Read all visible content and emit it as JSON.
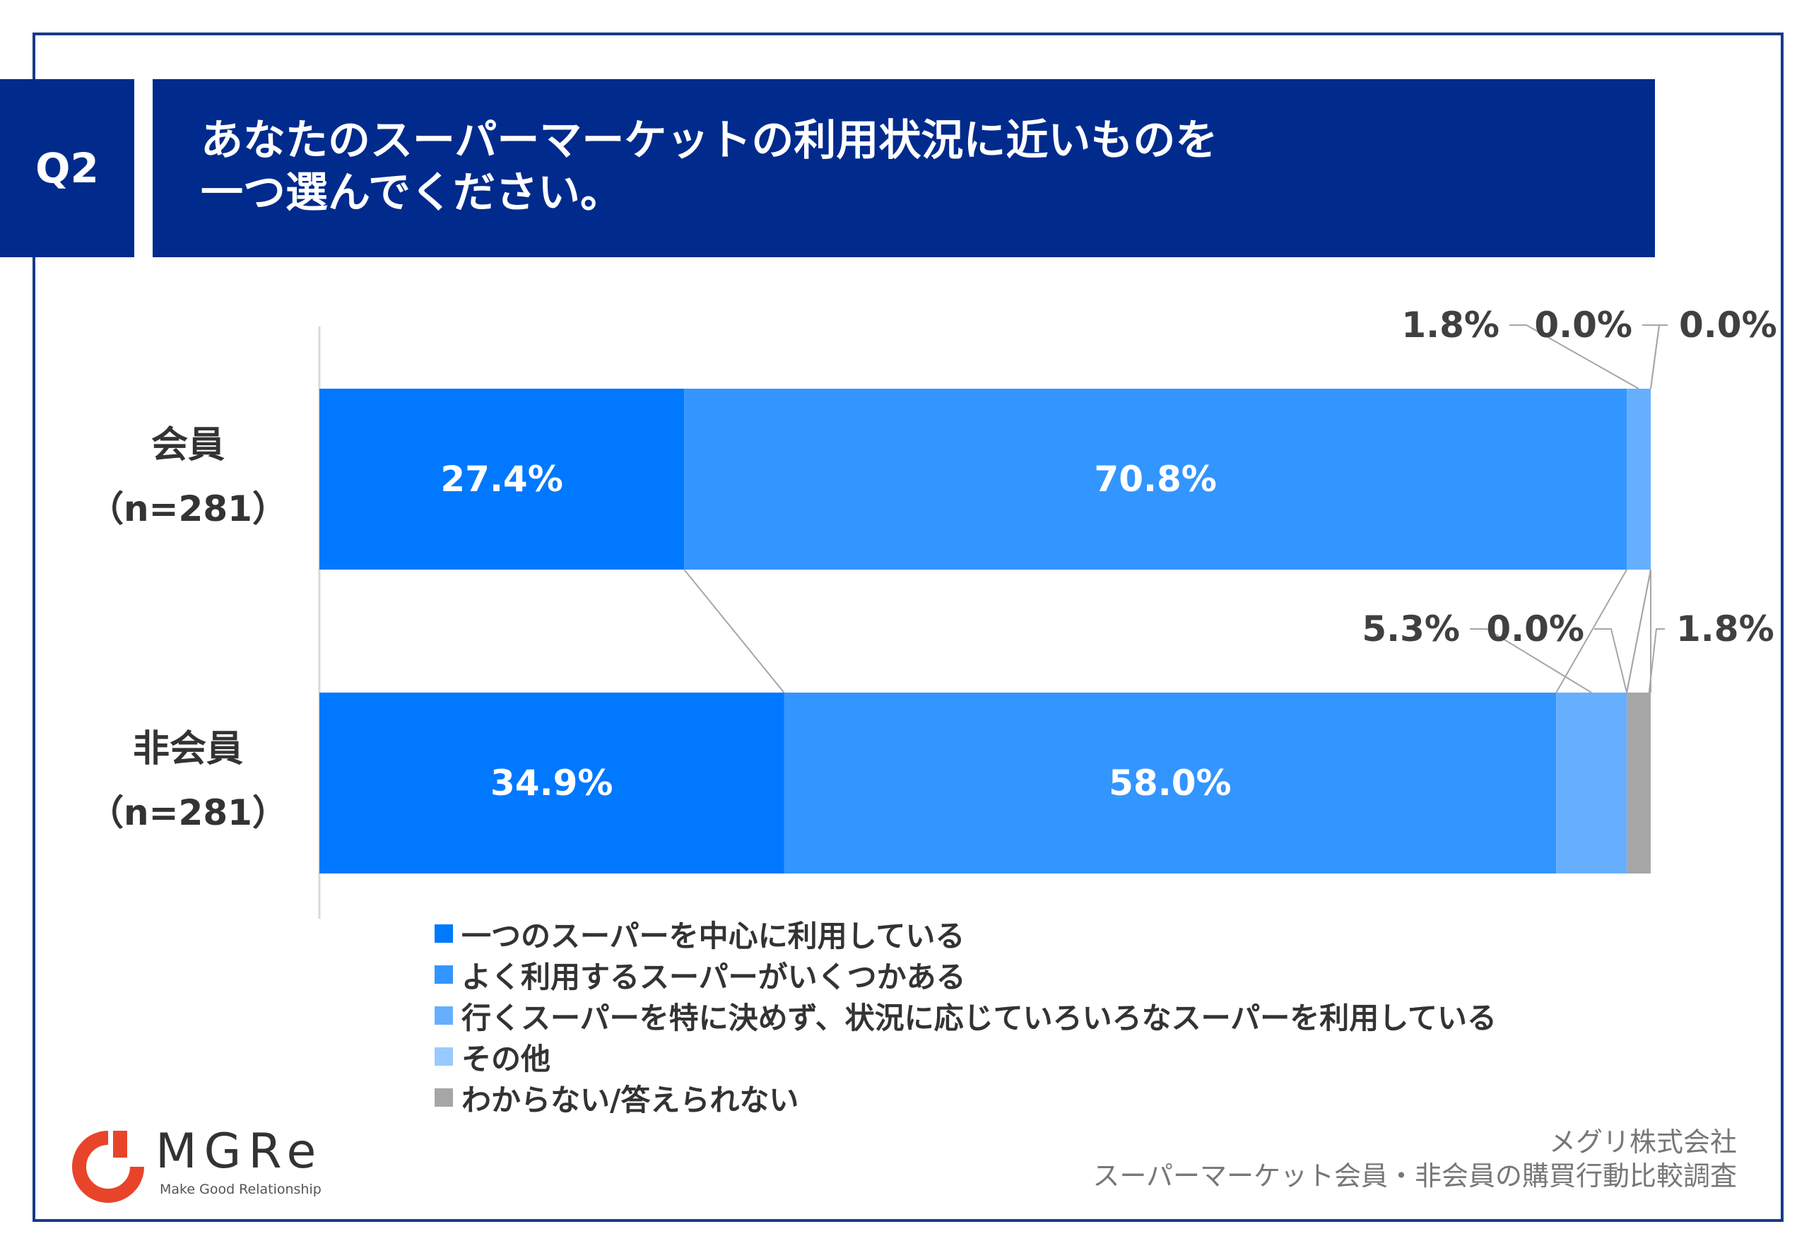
{
  "question_tag": "Q2",
  "title_lines": [
    "あなたのスーパーマーケットの利用状況に近いものを",
    "一つ選んでください。"
  ],
  "chart_data": {
    "type": "bar",
    "orientation": "horizontal",
    "stacked": true,
    "xlim": [
      0,
      100
    ],
    "categories": [
      {
        "name": "会員",
        "n": "（n=281）"
      },
      {
        "name": "非会員",
        "n": "（n=281）"
      }
    ],
    "series": [
      {
        "name": "一つのスーパーを中心に利用している",
        "color": "#0078ff",
        "values": [
          27.4,
          34.9
        ],
        "labels": [
          "27.4%",
          "34.9%"
        ]
      },
      {
        "name": "よく利用するスーパーがいくつかある",
        "color": "#3395ff",
        "values": [
          70.8,
          58.0
        ],
        "labels": [
          "70.8%",
          "58.0%"
        ]
      },
      {
        "name": "行くスーパーを特に決めず、状況に応じていろいろなスーパーを利用している",
        "color": "#66afff",
        "values": [
          1.8,
          5.3
        ],
        "labels": [
          "1.8%",
          "5.3%"
        ]
      },
      {
        "name": "その他",
        "color": "#99caff",
        "values": [
          0.0,
          0.0
        ],
        "labels": [
          "0.0%",
          "0.0%"
        ]
      },
      {
        "name": "わからない/答えられない",
        "color": "#a6a6a6",
        "values": [
          0.0,
          1.8
        ],
        "labels": [
          "0.0%",
          "1.8%"
        ]
      }
    ]
  },
  "footer": {
    "company": "メグリ株式会社",
    "survey": "スーパーマーケット会員・非会員の購買行動比較調査"
  },
  "logo": {
    "name": "MGRe",
    "tagline": "Make Good Relationship",
    "color": "#e8442a"
  }
}
